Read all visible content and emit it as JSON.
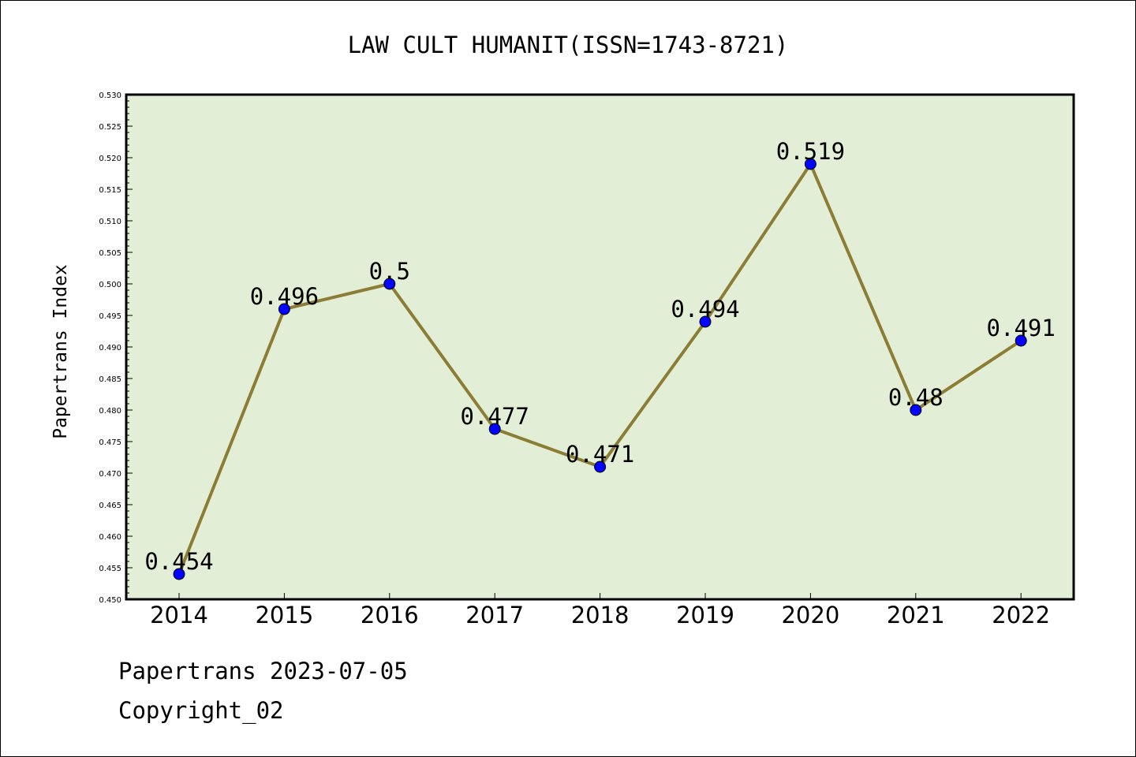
{
  "chart_data": {
    "type": "line",
    "title": "LAW CULT HUMANIT(ISSN=1743-8721)",
    "ylabel": "Papertrans Index",
    "xlabel": "",
    "categories": [
      "2014",
      "2015",
      "2016",
      "2017",
      "2018",
      "2019",
      "2020",
      "2021",
      "2022"
    ],
    "series": [
      {
        "values": [
          0.454,
          0.496,
          0.5,
          0.477,
          0.471,
          0.494,
          0.519,
          0.48,
          0.491
        ],
        "data_labels": [
          "0.454",
          "0.496",
          "0.5",
          "0.477",
          "0.471",
          "0.494",
          "0.519",
          "0.48",
          "0.491"
        ],
        "line_color": "#8b7d35",
        "marker_color": "#0000ff"
      }
    ],
    "ylim": [
      0.45,
      0.53
    ],
    "yticks": [
      "0.450",
      "0.455",
      "0.460",
      "0.465",
      "0.470",
      "0.475",
      "0.480",
      "0.485",
      "0.490",
      "0.495",
      "0.500",
      "0.505",
      "0.510",
      "0.515",
      "0.520",
      "0.525",
      "0.530"
    ],
    "plot_background": "#e2efd6",
    "grid": false,
    "legend": "none"
  },
  "footer": {
    "source_line": "Papertrans 2023-07-05",
    "copyright_line": "Copyright_02"
  }
}
